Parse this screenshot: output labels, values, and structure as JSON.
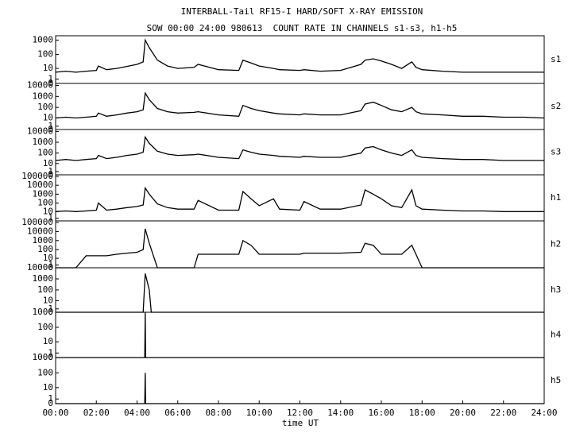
{
  "chart_data": [
    {
      "type": "line",
      "title": "INTERBALL-Tail RF15-I HARD/SOFT X-RAY EMISSION",
      "subtitle": "SOW 00:00 24:00 980613  COUNT RATE IN CHANNELS s1-s3, h1-h5",
      "label": "s1",
      "color": "#000000",
      "yscale": "log1p",
      "x": [
        0,
        0.5,
        1,
        1.5,
        2,
        2.1,
        2.5,
        3,
        3.5,
        4,
        4.3,
        4.4,
        4.6,
        5,
        5.5,
        6,
        6.8,
        7,
        8,
        9,
        9.2,
        9.6,
        10,
        10.7,
        11,
        12,
        12.2,
        13,
        14,
        15,
        15.2,
        15.6,
        16,
        16.5,
        17,
        17.5,
        17.7,
        18,
        19,
        20,
        21,
        22,
        23,
        24
      ],
      "values": [
        5,
        6,
        5,
        6,
        7,
        15,
        8,
        10,
        14,
        20,
        30,
        1000,
        300,
        40,
        15,
        10,
        12,
        20,
        8,
        7,
        40,
        25,
        15,
        10,
        8,
        7,
        8,
        6,
        7,
        20,
        40,
        50,
        35,
        20,
        10,
        30,
        12,
        8,
        6,
        5,
        5,
        5,
        5,
        5
      ],
      "xlim": [
        0,
        24
      ],
      "ylim": [
        0,
        2000
      ],
      "yticks": [
        1000,
        100,
        10,
        1,
        0
      ]
    },
    {
      "type": "line",
      "label": "s2",
      "color": "#000000",
      "yscale": "log1p",
      "x": [
        0,
        0.5,
        1,
        1.5,
        2,
        2.1,
        2.5,
        3,
        3.5,
        4,
        4.3,
        4.4,
        4.6,
        5,
        5.5,
        6,
        6.8,
        7,
        8,
        9,
        9.2,
        9.6,
        10,
        10.7,
        11,
        12,
        12.2,
        13,
        14,
        15,
        15.2,
        15.6,
        16,
        16.5,
        17,
        17.5,
        17.7,
        18,
        19,
        20,
        21,
        22,
        23,
        24
      ],
      "values": [
        10,
        12,
        10,
        12,
        15,
        30,
        15,
        20,
        30,
        40,
        60,
        2000,
        500,
        80,
        40,
        30,
        35,
        40,
        20,
        15,
        150,
        80,
        50,
        30,
        25,
        20,
        25,
        20,
        20,
        50,
        200,
        300,
        150,
        60,
        40,
        100,
        40,
        25,
        20,
        15,
        15,
        12,
        12,
        10
      ],
      "xlim": [
        0,
        24
      ],
      "ylim": [
        0,
        15000
      ],
      "yticks": [
        10000,
        1000,
        100,
        10,
        1,
        0
      ]
    },
    {
      "type": "line",
      "label": "s3",
      "color": "#000000",
      "yscale": "log1p",
      "x": [
        0,
        0.5,
        1,
        1.5,
        2,
        2.1,
        2.5,
        3,
        3.5,
        4,
        4.3,
        4.4,
        4.6,
        5,
        5.5,
        6,
        6.8,
        7,
        8,
        9,
        9.2,
        9.6,
        10,
        10.7,
        11,
        12,
        12.2,
        13,
        14,
        15,
        15.2,
        15.6,
        16,
        16.5,
        17,
        17.5,
        17.7,
        18,
        19,
        20,
        21,
        22,
        23,
        24
      ],
      "values": [
        20,
        25,
        20,
        25,
        30,
        60,
        30,
        40,
        60,
        80,
        120,
        3000,
        800,
        150,
        80,
        60,
        70,
        80,
        40,
        30,
        200,
        120,
        80,
        60,
        50,
        40,
        50,
        40,
        40,
        100,
        300,
        400,
        200,
        100,
        60,
        200,
        60,
        40,
        30,
        25,
        25,
        20,
        20,
        20
      ],
      "xlim": [
        0,
        24
      ],
      "ylim": [
        0,
        15000
      ],
      "yticks": [
        10000,
        1000,
        100,
        10,
        1,
        0
      ]
    },
    {
      "type": "line",
      "label": "h1",
      "color": "#000000",
      "yscale": "log1p",
      "x": [
        0,
        0.5,
        1,
        1.5,
        2,
        2.1,
        2.5,
        3,
        3.5,
        4,
        4.3,
        4.4,
        4.6,
        5,
        5.5,
        6,
        6.8,
        7,
        8,
        9,
        9.2,
        9.6,
        10,
        10.7,
        11,
        12,
        12.2,
        13,
        14,
        15,
        15.2,
        15.6,
        16,
        16.5,
        17,
        17.5,
        17.7,
        18,
        19,
        20,
        21,
        22,
        23,
        24
      ],
      "values": [
        10,
        12,
        10,
        12,
        15,
        100,
        15,
        20,
        30,
        40,
        60,
        5000,
        1000,
        80,
        30,
        20,
        20,
        200,
        15,
        15,
        2000,
        300,
        50,
        300,
        20,
        15,
        150,
        20,
        20,
        60,
        3000,
        1000,
        300,
        50,
        30,
        3000,
        50,
        20,
        15,
        12,
        12,
        10,
        10,
        10
      ],
      "xlim": [
        0,
        24
      ],
      "ylim": [
        0,
        150000
      ],
      "yticks": [
        100000,
        10000,
        1000,
        100,
        10,
        1
      ]
    },
    {
      "type": "line",
      "label": "h2",
      "color": "#000000",
      "yscale": "log1p",
      "x": [
        0,
        0.5,
        1,
        1.5,
        2,
        2.1,
        2.5,
        3,
        3.5,
        4,
        4.3,
        4.4,
        4.6,
        5,
        5.5,
        6,
        6.8,
        7,
        8,
        9,
        9.2,
        9.6,
        10,
        10.7,
        11,
        12,
        12.2,
        13,
        14,
        15,
        15.2,
        15.6,
        16,
        16.5,
        17,
        17.5,
        17.7,
        18,
        19,
        20,
        21,
        22,
        23,
        24
      ],
      "values": [
        0,
        0,
        0,
        20,
        20,
        20,
        20,
        30,
        40,
        50,
        100,
        20000,
        500,
        0,
        0,
        0,
        0,
        30,
        30,
        30,
        1000,
        300,
        30,
        30,
        30,
        30,
        40,
        40,
        40,
        50,
        500,
        300,
        30,
        30,
        30,
        300,
        30,
        0,
        0,
        0,
        0,
        0,
        0,
        0
      ],
      "xlim": [
        0,
        24
      ],
      "ylim": [
        0,
        150000
      ],
      "yticks": [
        100000,
        10000,
        1000,
        100,
        10,
        1,
        0
      ]
    },
    {
      "type": "line",
      "label": "h3",
      "color": "#000000",
      "yscale": "log1p",
      "x": [
        0,
        4.3,
        4.4,
        4.6,
        4.7,
        24
      ],
      "values": [
        0,
        0,
        3000,
        100,
        0,
        0
      ],
      "xlim": [
        0,
        24
      ],
      "ylim": [
        0,
        10000
      ],
      "yticks": [
        10000,
        1000,
        100,
        10,
        1,
        0
      ]
    },
    {
      "type": "line",
      "label": "h4",
      "color": "#000000",
      "yscale": "log1p",
      "x": [
        0,
        4.38,
        4.4,
        4.42,
        24
      ],
      "values": [
        0,
        0,
        1000,
        0,
        0
      ],
      "xlim": [
        0,
        24
      ],
      "ylim": [
        0,
        1000
      ],
      "yticks": [
        1000,
        100,
        10,
        1,
        0
      ]
    },
    {
      "type": "line",
      "label": "h5",
      "color": "#000000",
      "yscale": "log1p",
      "xlabel": "time UT",
      "x": [
        0,
        4.38,
        4.4,
        4.42,
        24
      ],
      "values": [
        0,
        0,
        100,
        0,
        0
      ],
      "xlim": [
        0,
        24
      ],
      "ylim": [
        0,
        1000
      ],
      "yticks": [
        1000,
        100,
        10,
        1,
        0
      ],
      "xticks": [
        {
          "value": 0,
          "label": "00:00"
        },
        {
          "value": 2,
          "label": "02:00"
        },
        {
          "value": 4,
          "label": "04:00"
        },
        {
          "value": 6,
          "label": "06:00"
        },
        {
          "value": 8,
          "label": "08:00"
        },
        {
          "value": 10,
          "label": "10:00"
        },
        {
          "value": 12,
          "label": "12:00"
        },
        {
          "value": 14,
          "label": "14:00"
        },
        {
          "value": 16,
          "label": "16:00"
        },
        {
          "value": 18,
          "label": "18:00"
        },
        {
          "value": 20,
          "label": "20:00"
        },
        {
          "value": 22,
          "label": "22:00"
        },
        {
          "value": 24,
          "label": "24:00"
        }
      ]
    }
  ]
}
